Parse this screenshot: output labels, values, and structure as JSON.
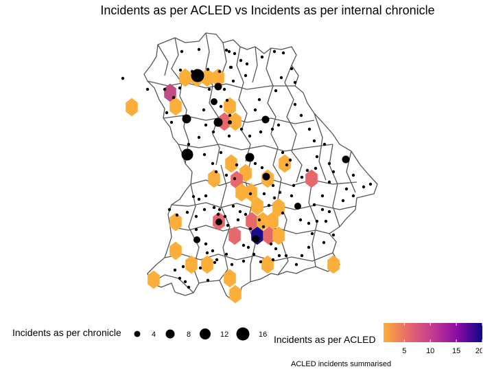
{
  "title": "Incidents as per ACLED vs Incidents as per internal chronicle",
  "caption": "ACLED incidents summarised",
  "legend_size": {
    "title": "Incidents as per chronicle",
    "entries": [
      {
        "label": "4",
        "value": 4
      },
      {
        "label": "8",
        "value": 8
      },
      {
        "label": "12",
        "value": 12
      },
      {
        "label": "16",
        "value": 16
      }
    ]
  },
  "legend_fill": {
    "title": "Incidents as per ACLED",
    "ticks": [
      "5",
      "10",
      "15",
      "20"
    ],
    "tick_values": [
      5,
      10,
      15,
      20
    ],
    "range": [
      1,
      20
    ],
    "colors": [
      "#fcae3a",
      "#e6686b",
      "#c23b92",
      "#8b0aa5",
      "#0d0887"
    ]
  },
  "map_style": {
    "boundary_color": "#555555",
    "fill": "#ffffff",
    "point_color": "#000000"
  }
}
